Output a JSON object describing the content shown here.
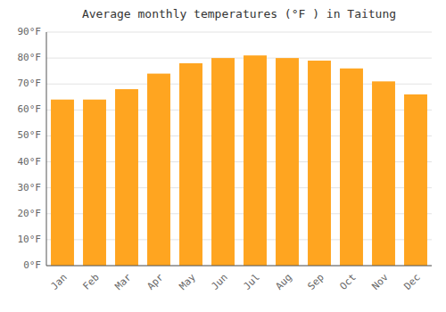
{
  "chart_data": {
    "type": "bar",
    "title": "Average monthly temperatures (°F ) in Taitung",
    "categories": [
      "Jan",
      "Feb",
      "Mar",
      "Apr",
      "May",
      "Jun",
      "Jul",
      "Aug",
      "Sep",
      "Oct",
      "Nov",
      "Dec"
    ],
    "values": [
      64,
      64,
      68,
      74,
      78,
      80,
      81,
      80,
      79,
      76,
      71,
      66
    ],
    "color": "#FFA520",
    "ylim": [
      0,
      90
    ],
    "yticks": [
      {
        "value": 0,
        "label": "0°F"
      },
      {
        "value": 10,
        "label": "10°F"
      },
      {
        "value": 20,
        "label": "20°F"
      },
      {
        "value": 30,
        "label": "30°F"
      },
      {
        "value": 40,
        "label": "40°F"
      },
      {
        "value": 50,
        "label": "50°F"
      },
      {
        "value": 60,
        "label": "60°F"
      },
      {
        "value": 70,
        "label": "70°F"
      },
      {
        "value": 80,
        "label": "80°F"
      },
      {
        "value": 90,
        "label": "90°F"
      }
    ],
    "grid": true
  }
}
